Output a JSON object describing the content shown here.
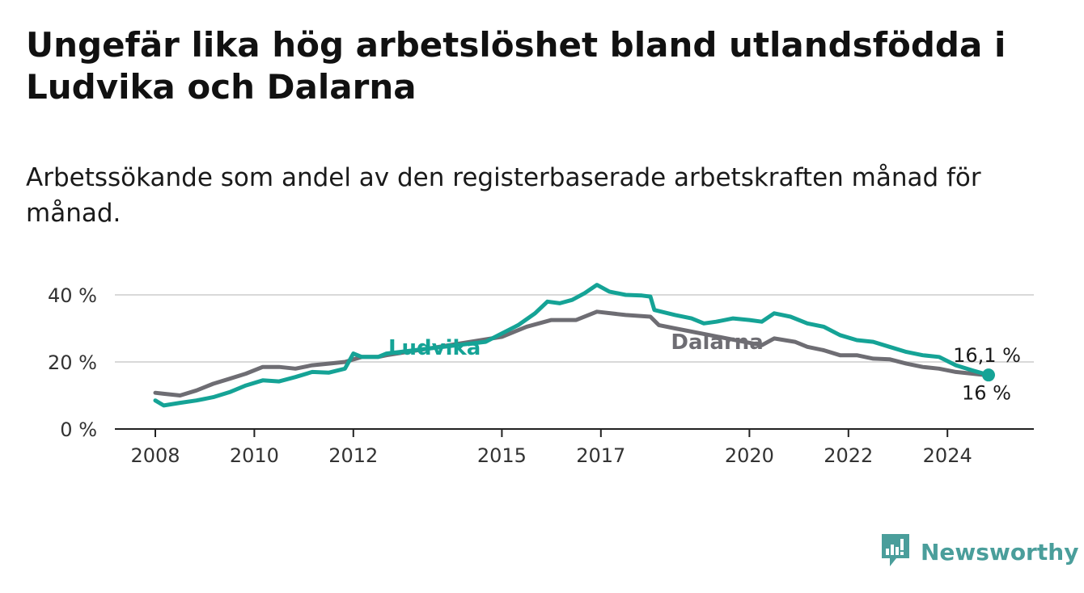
{
  "title": "Ungefär lika hög arbetslöshet bland utlandsfödda i Ludvika och Dalarna",
  "subtitle": "Arbetssökande som andel av den registerbaserade arbetskraften månad för månad.",
  "brand": {
    "name": "Newsworthy",
    "icon": "newsworthy-logo-icon",
    "color": "#4a9e9b"
  },
  "chart_data": {
    "type": "line",
    "xlabel": "",
    "ylabel": "",
    "ylim": [
      0,
      45
    ],
    "xlim": [
      2008,
      2025.2
    ],
    "grid": true,
    "y_ticks": [
      {
        "value": 0,
        "label": "0 %"
      },
      {
        "value": 20,
        "label": "20 %"
      },
      {
        "value": 40,
        "label": "40 %"
      }
    ],
    "x_ticks": [
      {
        "value": 2008,
        "label": "2008"
      },
      {
        "value": 2010,
        "label": "2010"
      },
      {
        "value": 2012,
        "label": "2012"
      },
      {
        "value": 2015,
        "label": "2015"
      },
      {
        "value": 2017,
        "label": "2017"
      },
      {
        "value": 2020,
        "label": "2020"
      },
      {
        "value": 2022,
        "label": "2022"
      },
      {
        "value": 2024,
        "label": "2024"
      }
    ],
    "series": [
      {
        "name": "Ludvika",
        "color": "#15a396",
        "end_label": "16,1 %",
        "points": [
          [
            2008.0,
            8.5
          ],
          [
            2008.17,
            7.0
          ],
          [
            2008.5,
            7.8
          ],
          [
            2008.83,
            8.5
          ],
          [
            2009.17,
            9.5
          ],
          [
            2009.5,
            11.0
          ],
          [
            2009.83,
            13.0
          ],
          [
            2010.17,
            14.5
          ],
          [
            2010.5,
            14.2
          ],
          [
            2010.83,
            15.5
          ],
          [
            2011.17,
            17.0
          ],
          [
            2011.5,
            16.8
          ],
          [
            2011.83,
            18.0
          ],
          [
            2012.0,
            22.5
          ],
          [
            2012.17,
            21.5
          ],
          [
            2012.5,
            21.5
          ],
          [
            2012.67,
            22.5
          ],
          [
            2014.67,
            26.0
          ],
          [
            2015.0,
            28.5
          ],
          [
            2015.33,
            31.0
          ],
          [
            2015.67,
            34.5
          ],
          [
            2015.92,
            38.0
          ],
          [
            2016.17,
            37.5
          ],
          [
            2016.42,
            38.5
          ],
          [
            2016.67,
            40.5
          ],
          [
            2016.92,
            43.0
          ],
          [
            2017.17,
            41.0
          ],
          [
            2017.5,
            40.0
          ],
          [
            2017.83,
            39.8
          ],
          [
            2018.0,
            39.5
          ],
          [
            2018.08,
            35.5
          ],
          [
            2018.5,
            34.0
          ],
          [
            2018.83,
            33.0
          ],
          [
            2019.08,
            31.5
          ],
          [
            2019.33,
            32.0
          ],
          [
            2019.67,
            33.0
          ],
          [
            2020.0,
            32.5
          ],
          [
            2020.25,
            32.0
          ],
          [
            2020.5,
            34.5
          ],
          [
            2020.83,
            33.5
          ],
          [
            2021.17,
            31.5
          ],
          [
            2021.5,
            30.5
          ],
          [
            2021.83,
            28.0
          ],
          [
            2022.17,
            26.5
          ],
          [
            2022.5,
            26.0
          ],
          [
            2022.83,
            24.5
          ],
          [
            2023.17,
            23.0
          ],
          [
            2023.5,
            22.0
          ],
          [
            2023.83,
            21.5
          ],
          [
            2024.17,
            19.0
          ],
          [
            2024.5,
            17.5
          ],
          [
            2024.83,
            16.1
          ]
        ]
      },
      {
        "name": "Dalarna",
        "color": "#6e6d73",
        "end_label": "16 %",
        "points": [
          [
            2008.0,
            10.8
          ],
          [
            2008.17,
            10.5
          ],
          [
            2008.5,
            10.0
          ],
          [
            2008.83,
            11.5
          ],
          [
            2009.17,
            13.5
          ],
          [
            2009.5,
            15.0
          ],
          [
            2009.83,
            16.5
          ],
          [
            2010.17,
            18.5
          ],
          [
            2010.5,
            18.5
          ],
          [
            2010.83,
            18.0
          ],
          [
            2011.17,
            19.0
          ],
          [
            2011.5,
            19.5
          ],
          [
            2011.83,
            20.0
          ],
          [
            2012.17,
            21.5
          ],
          [
            2012.5,
            21.5
          ],
          [
            2012.67,
            22.0
          ],
          [
            2015.0,
            27.5
          ],
          [
            2015.5,
            30.5
          ],
          [
            2016.0,
            32.5
          ],
          [
            2016.5,
            32.5
          ],
          [
            2016.92,
            35.0
          ],
          [
            2017.5,
            34.0
          ],
          [
            2018.0,
            33.5
          ],
          [
            2018.17,
            31.0
          ],
          [
            2018.5,
            30.0
          ],
          [
            2020.25,
            25.0
          ],
          [
            2020.5,
            27.0
          ],
          [
            2020.92,
            26.0
          ],
          [
            2021.17,
            24.5
          ],
          [
            2021.5,
            23.5
          ],
          [
            2021.83,
            22.0
          ],
          [
            2022.17,
            22.0
          ],
          [
            2022.5,
            21.0
          ],
          [
            2022.83,
            20.8
          ],
          [
            2023.17,
            19.5
          ],
          [
            2023.5,
            18.5
          ],
          [
            2023.83,
            18.0
          ],
          [
            2024.17,
            17.0
          ],
          [
            2024.5,
            16.5
          ],
          [
            2024.83,
            16.0
          ]
        ]
      }
    ]
  }
}
